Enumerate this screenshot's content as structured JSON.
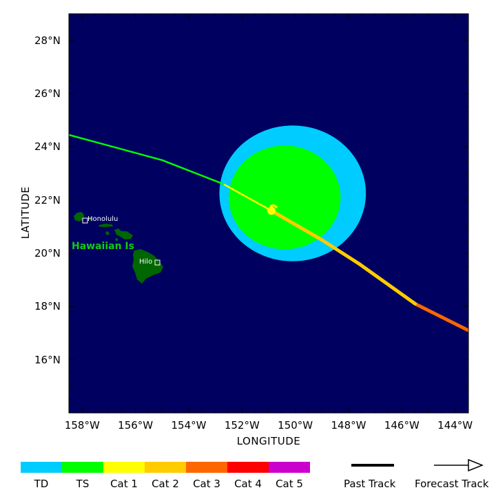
{
  "map": {
    "background_color": "#000060",
    "lon_range": [
      -158.5,
      -143.5
    ],
    "lat_range": [
      14,
      29
    ],
    "labels": {
      "honolulu": "Honolulu",
      "hilo": "Hilo",
      "hawaiian_islands": "Hawaiian Is"
    }
  },
  "axes": {
    "xlabel": "LONGITUDE",
    "ylabel": "LATITUDE",
    "x_ticks": [
      "158°W",
      "156°W",
      "154°W",
      "152°W",
      "150°W",
      "148°W",
      "146°W",
      "144°W"
    ],
    "x_tick_values": [
      -158,
      -156,
      -154,
      -152,
      -150,
      -148,
      -146,
      -144
    ],
    "y_ticks": [
      "28°N",
      "26°N",
      "24°N",
      "22°N",
      "20°N",
      "18°N",
      "16°N"
    ],
    "y_tick_values": [
      28,
      26,
      24,
      22,
      20,
      18,
      16
    ]
  },
  "storm": {
    "current_position": {
      "lon": -150.9,
      "lat": 21.6
    },
    "wind_radii": [
      {
        "category": "TD",
        "color": "#00ccff",
        "lon": -150.1,
        "lat": 22.25,
        "rx_deg": 2.75,
        "ry_deg": 2.55
      },
      {
        "category": "TS",
        "color": "#00ff00",
        "lon": -150.4,
        "lat": 22.1,
        "rx_deg": 2.1,
        "ry_deg": 1.95
      }
    ],
    "past_track": [
      {
        "lon": -145.5,
        "lat": 18.1,
        "category": "Cat 2"
      },
      {
        "lon": -147.6,
        "lat": 19.6,
        "category": "Cat 2"
      },
      {
        "lon": -149.0,
        "lat": 20.5,
        "category": "Cat 2"
      },
      {
        "lon": -150.9,
        "lat": 21.6,
        "category": "Cat 1"
      }
    ],
    "past_track_extension": [
      {
        "lon": -143.5,
        "lat": 17.1,
        "category": "Cat 3"
      },
      {
        "lon": -144.5,
        "lat": 17.6,
        "category": "Cat 3"
      },
      {
        "lon": -145.5,
        "lat": 18.1,
        "category": "Cat 3"
      }
    ],
    "forecast_track": [
      {
        "lon": -150.9,
        "lat": 21.6,
        "category": "Cat 1"
      },
      {
        "lon": -152.7,
        "lat": 22.6,
        "category": "TS"
      },
      {
        "lon": -155.0,
        "lat": 23.5,
        "category": "TS"
      },
      {
        "lon": -158.5,
        "lat": 24.45,
        "category": "TS"
      }
    ]
  },
  "legend": {
    "categories": [
      {
        "label": "TD",
        "color": "#00ccff"
      },
      {
        "label": "TS",
        "color": "#00ff00"
      },
      {
        "label": "Cat 1",
        "color": "#ffff00"
      },
      {
        "label": "Cat 2",
        "color": "#ffcc00"
      },
      {
        "label": "Cat 3",
        "color": "#ff6600"
      },
      {
        "label": "Cat 4",
        "color": "#ff0000"
      },
      {
        "label": "Cat 5",
        "color": "#cc00cc"
      }
    ],
    "past_track_label": "Past Track",
    "forecast_track_label": "Forecast Track"
  },
  "land_color": "#006600"
}
